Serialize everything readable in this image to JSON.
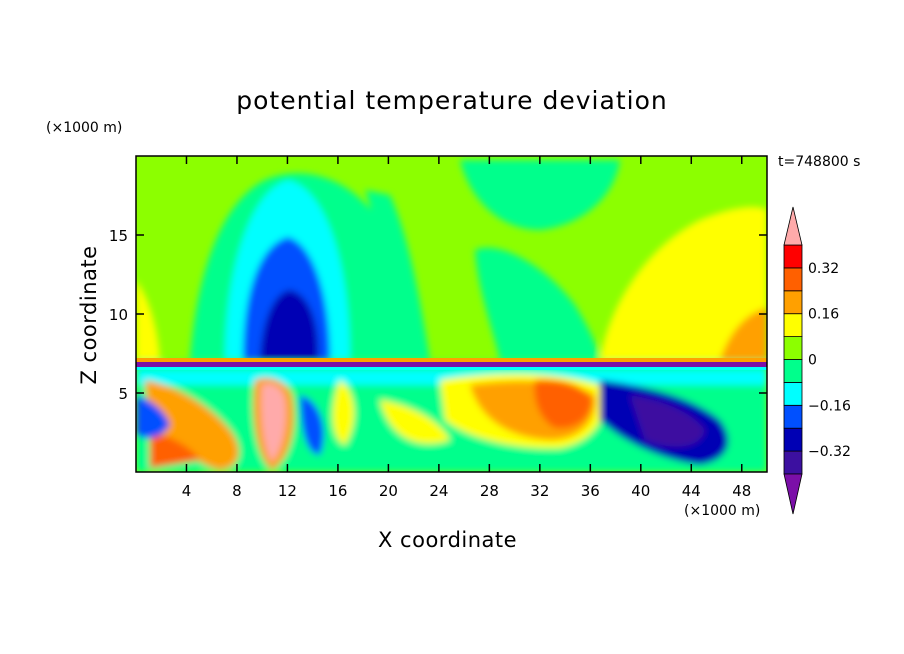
{
  "chart_data": {
    "type": "heatmap",
    "title": "potential temperature deviation",
    "xlabel": "X coordinate",
    "ylabel": "Z coordinate",
    "x_unit": "(×1000 m)",
    "y_unit": "(×1000 m)",
    "time_label": "t=748800 s",
    "xlim": [
      0,
      50
    ],
    "ylim": [
      0,
      20
    ],
    "x_ticks": [
      4,
      8,
      12,
      16,
      20,
      24,
      28,
      32,
      36,
      40,
      44,
      48
    ],
    "y_ticks": [
      5,
      10,
      15
    ],
    "x_tick_labels": [
      "4",
      "8",
      "12",
      "16",
      "20",
      "24",
      "28",
      "32",
      "36",
      "40",
      "44",
      "48"
    ],
    "y_tick_labels": [
      "5",
      "10",
      "15"
    ],
    "colorbar": {
      "levels": [
        -0.4,
        -0.32,
        -0.24,
        -0.16,
        -0.08,
        0,
        0.08,
        0.16,
        0.24,
        0.32,
        0.4
      ],
      "tick_values": [
        -0.32,
        -0.16,
        0,
        0.16,
        0.32
      ],
      "tick_labels": [
        "−0.32",
        "−0.16",
        "0",
        "0.16",
        "0.32"
      ],
      "colors": [
        "#7b0fa8",
        "#3c10a0",
        "#0000b4",
        "#0050ff",
        "#00ffff",
        "#00ff8c",
        "#8cff00",
        "#ffff00",
        "#ffa000",
        "#ff6000",
        "#ff0000",
        "#ffaaaa"
      ],
      "extend": "both"
    },
    "grid": false
  }
}
